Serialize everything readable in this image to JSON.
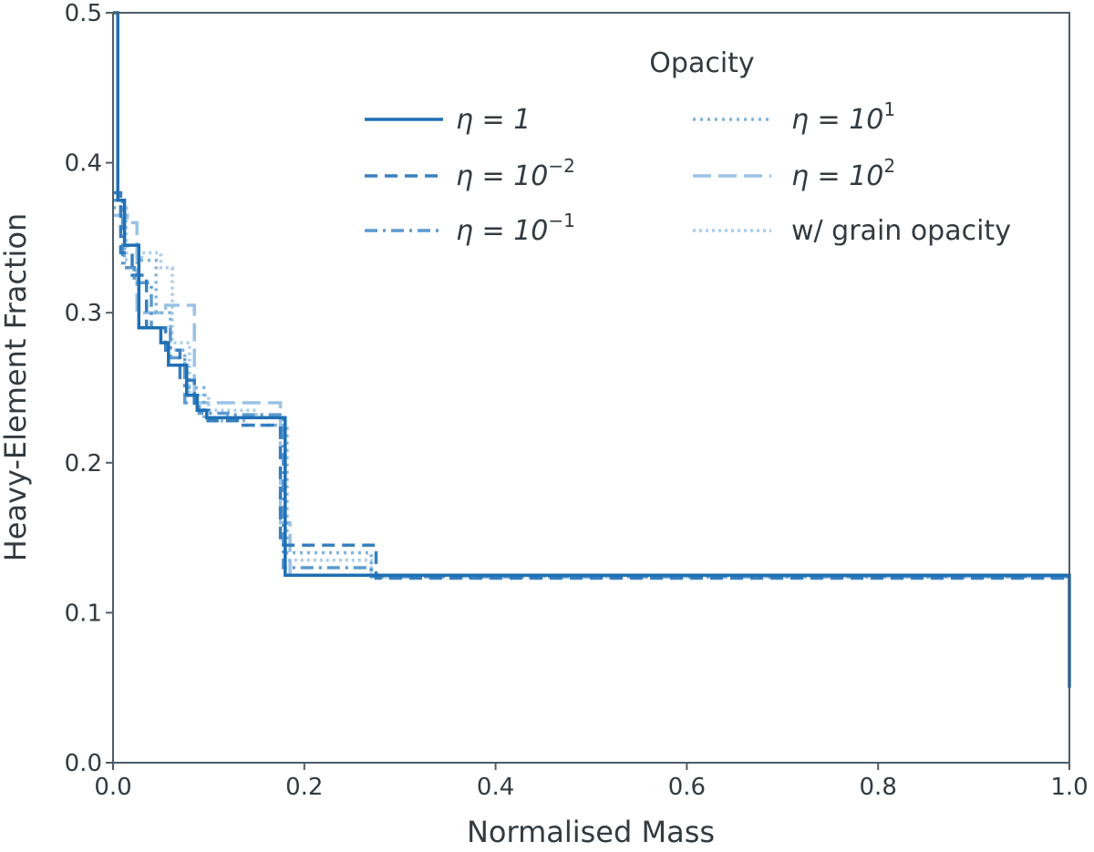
{
  "chart_data": {
    "type": "line",
    "title": "",
    "xlabel": "Normalised Mass",
    "ylabel": "Heavy-Element Fraction",
    "xlim": [
      0.0,
      1.0
    ],
    "ylim": [
      0.0,
      0.5
    ],
    "xticks": [
      "0.0",
      "0.2",
      "0.4",
      "0.6",
      "0.8",
      "1.0"
    ],
    "yticks": [
      "0.0",
      "0.1",
      "0.2",
      "0.3",
      "0.4",
      "0.5"
    ],
    "grid": false,
    "legend": {
      "title": "Opacity",
      "position": "top-right",
      "columns": 2
    },
    "series": [
      {
        "name": "η = 1",
        "label_text": "η = 1",
        "color": "#1f6fb4",
        "opacity": 1.0,
        "dash": "solid",
        "x": [
          0.0,
          0.005,
          0.005,
          0.012,
          0.012,
          0.027,
          0.027,
          0.05,
          0.05,
          0.058,
          0.058,
          0.077,
          0.077,
          0.088,
          0.088,
          0.098,
          0.098,
          0.155,
          0.155,
          0.18,
          0.18,
          0.27,
          0.27,
          1.0,
          1.0
        ],
        "y": [
          0.5,
          0.5,
          0.375,
          0.375,
          0.345,
          0.345,
          0.29,
          0.29,
          0.28,
          0.28,
          0.265,
          0.265,
          0.245,
          0.245,
          0.235,
          0.235,
          0.23,
          0.23,
          0.23,
          0.23,
          0.125,
          0.125,
          0.125,
          0.125,
          0.05
        ]
      },
      {
        "name": "η = 10^-2",
        "label_text": "η = 10",
        "label_sup": "−2",
        "color": "#2d78bc",
        "opacity": 0.95,
        "dash": "14,8",
        "x": [
          0.0,
          0.008,
          0.008,
          0.02,
          0.02,
          0.035,
          0.035,
          0.055,
          0.055,
          0.07,
          0.07,
          0.085,
          0.085,
          0.1,
          0.1,
          0.13,
          0.13,
          0.175,
          0.175,
          0.275,
          0.275,
          1.0
        ],
        "y": [
          0.38,
          0.38,
          0.34,
          0.34,
          0.325,
          0.325,
          0.29,
          0.29,
          0.275,
          0.275,
          0.255,
          0.255,
          0.235,
          0.235,
          0.228,
          0.228,
          0.225,
          0.225,
          0.145,
          0.145,
          0.123,
          0.123
        ]
      },
      {
        "name": "η = 10^-1",
        "label_text": "η = 10",
        "label_sup": "−1",
        "color": "#4a8fca",
        "opacity": 0.9,
        "dash": "14,6,3,6",
        "x": [
          0.0,
          0.01,
          0.01,
          0.022,
          0.022,
          0.04,
          0.04,
          0.06,
          0.06,
          0.075,
          0.075,
          0.09,
          0.09,
          0.12,
          0.12,
          0.178,
          0.178,
          0.27,
          0.27,
          1.0
        ],
        "y": [
          0.375,
          0.375,
          0.33,
          0.33,
          0.32,
          0.32,
          0.29,
          0.29,
          0.27,
          0.27,
          0.24,
          0.24,
          0.233,
          0.233,
          0.232,
          0.232,
          0.13,
          0.13,
          0.124,
          0.124
        ]
      },
      {
        "name": "η = 10^1",
        "label_text": "η = 10",
        "label_sup": "1",
        "color": "#6aa6d6",
        "opacity": 0.85,
        "dash": "3,5",
        "x": [
          0.0,
          0.012,
          0.012,
          0.025,
          0.025,
          0.045,
          0.045,
          0.06,
          0.06,
          0.075,
          0.075,
          0.095,
          0.095,
          0.14,
          0.14,
          0.182,
          0.182,
          0.27,
          0.27,
          1.0
        ],
        "y": [
          0.37,
          0.37,
          0.33,
          0.33,
          0.335,
          0.335,
          0.3,
          0.3,
          0.275,
          0.275,
          0.25,
          0.25,
          0.228,
          0.228,
          0.225,
          0.225,
          0.14,
          0.14,
          0.125,
          0.125
        ]
      },
      {
        "name": "η = 10^2",
        "label_text": "η = 10",
        "label_sup": "2",
        "color": "#88b9e0",
        "opacity": 0.85,
        "dash": "20,8",
        "x": [
          0.0,
          0.015,
          0.015,
          0.025,
          0.025,
          0.055,
          0.055,
          0.085,
          0.085,
          0.095,
          0.095,
          0.175,
          0.175,
          0.185,
          0.185,
          0.27,
          0.27,
          1.0
        ],
        "y": [
          0.365,
          0.365,
          0.36,
          0.36,
          0.3,
          0.3,
          0.305,
          0.305,
          0.24,
          0.24,
          0.24,
          0.24,
          0.16,
          0.16,
          0.125,
          0.125,
          0.124,
          0.124
        ]
      },
      {
        "name": "w/ grain opacity",
        "label_text": "w/ grain opacity",
        "color": "#9cc5e6",
        "opacity": 0.85,
        "dash": "3,4",
        "x": [
          0.0,
          0.014,
          0.014,
          0.03,
          0.03,
          0.05,
          0.05,
          0.062,
          0.062,
          0.08,
          0.08,
          0.1,
          0.1,
          0.15,
          0.15,
          0.18,
          0.18,
          0.27,
          0.27,
          1.0
        ],
        "y": [
          0.37,
          0.37,
          0.335,
          0.335,
          0.34,
          0.34,
          0.33,
          0.33,
          0.28,
          0.28,
          0.245,
          0.245,
          0.235,
          0.235,
          0.23,
          0.23,
          0.135,
          0.135,
          0.125,
          0.125
        ]
      }
    ]
  }
}
